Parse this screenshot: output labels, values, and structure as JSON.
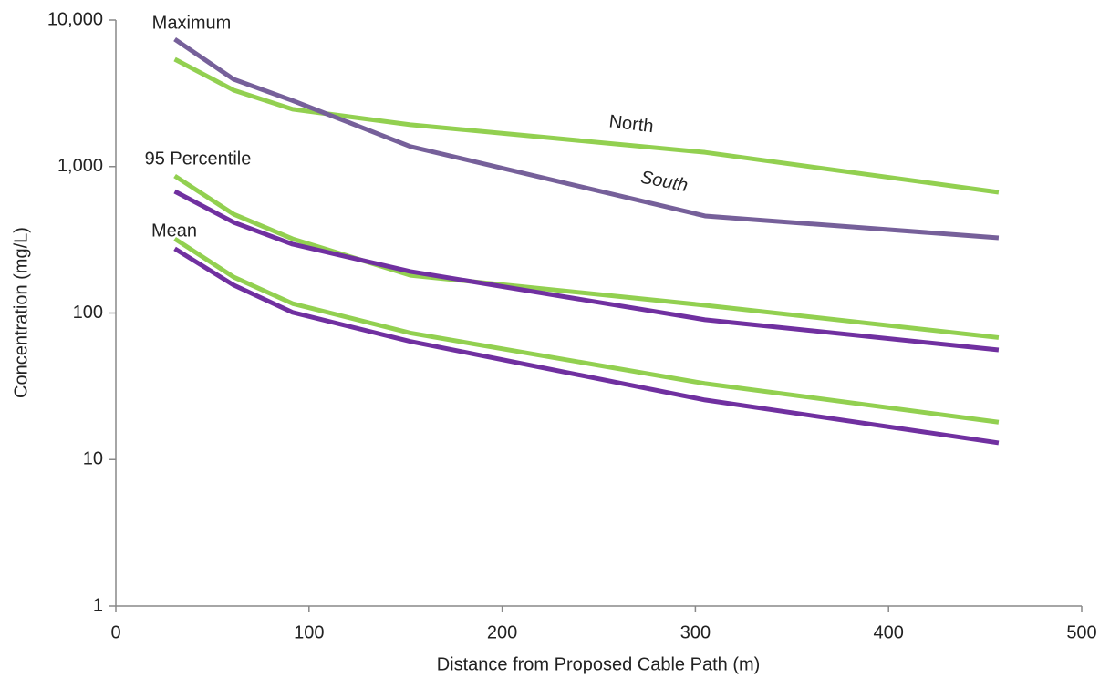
{
  "chart_data": {
    "type": "line",
    "log_y": true,
    "grid": false,
    "x_label": "Distance from Proposed Cable Path (m)",
    "y_label": "Concentration (mg/L)",
    "xlim": [
      0,
      500
    ],
    "xticks": [
      0,
      100,
      200,
      300,
      400,
      500
    ],
    "ylim": [
      1,
      10000
    ],
    "yticks": [
      1,
      10,
      100,
      {
        "value": 1000,
        "label": "1,000"
      },
      {
        "value": 10000,
        "label": "10,000"
      }
    ],
    "annotations": [
      "Maximum",
      "95 Percentile",
      "Mean"
    ],
    "x": [
      30.5,
      61,
      91.5,
      152.5,
      305,
      457
    ],
    "series": [
      {
        "name": "North",
        "color": "#92d050",
        "values": [
          5400,
          3320,
          2460,
          1930,
          1250,
          667
        ]
      },
      {
        "name": "South",
        "color": "#76609a",
        "values": [
          7400,
          3940,
          2820,
          1370,
          460,
          326
        ]
      },
      {
        "color": "#92d050",
        "values": [
          863,
          473,
          321,
          181,
          113,
          68
        ]
      },
      {
        "color": "#7030a0",
        "values": [
          677,
          416,
          295,
          192,
          90,
          56
        ]
      },
      {
        "color": "#92d050",
        "values": [
          321,
          176,
          116,
          73,
          33,
          18
        ]
      },
      {
        "color": "#7030a0",
        "values": [
          275,
          155,
          101,
          64,
          25.5,
          13
        ]
      }
    ]
  }
}
